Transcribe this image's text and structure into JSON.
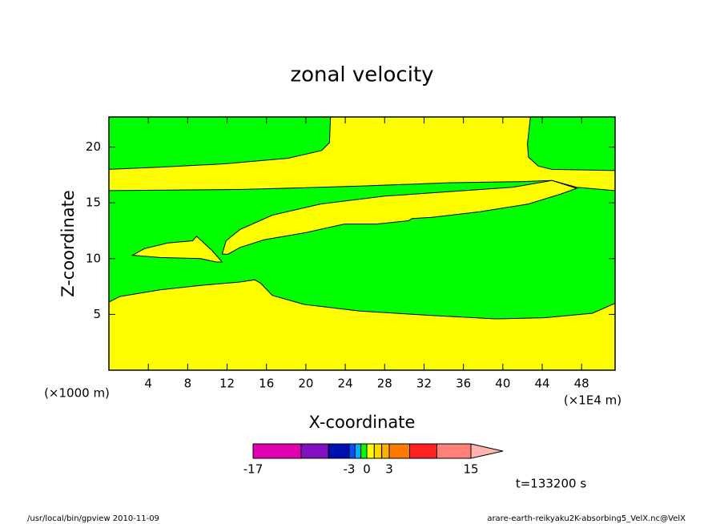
{
  "chart_data": {
    "type": "contour",
    "title": "zonal velocity",
    "x_label": "X-coordinate",
    "y_label": "Z-coordinate",
    "x_unit_left": "(×1000 m)",
    "x_unit_right": "(×1E4 m)",
    "time_label": "t=133200 s",
    "footer_left": "/usr/local/bin/gpview   2010-11-09",
    "footer_right": "arare-earth-reikyaku2K-absorbing5_VelX.nc@VelX",
    "xlim": [
      0,
      51.4
    ],
    "ylim": [
      0,
      22.7
    ],
    "xticks": [
      4,
      8,
      12,
      16,
      20,
      24,
      28,
      32,
      36,
      40,
      44,
      48
    ],
    "yticks": [
      5,
      10,
      15,
      20
    ],
    "background_color": "#ffff00",
    "regions": [
      {
        "color": "#00ff00",
        "x": [
          0,
          22.5,
          22.4,
          21.6,
          18.2,
          11.7,
          5.2,
          0
        ],
        "z": [
          22.7,
          22.7,
          20.4,
          19.7,
          19.0,
          18.5,
          18.2,
          18.0
        ]
      },
      {
        "color": "#00ff00",
        "x": [
          42.8,
          51.4,
          51.4,
          45.0,
          43.6,
          42.6,
          42.5
        ],
        "z": [
          22.7,
          22.7,
          17.9,
          18.0,
          18.3,
          19.1,
          20.3
        ]
      },
      {
        "color": "#00ff00",
        "x": [
          0,
          13.3,
          25.5,
          34.5,
          41.8,
          45.0,
          47.5,
          51.4,
          51.4,
          49.1,
          44.2,
          39.3,
          32.8,
          25.5,
          19.8,
          16.6,
          15.4,
          14.8,
          13.3,
          9.3,
          5.2,
          1.1,
          0
        ],
        "z": [
          16.1,
          16.2,
          16.5,
          16.8,
          16.9,
          17.0,
          16.4,
          16.1,
          6.0,
          5.1,
          4.7,
          4.6,
          4.9,
          5.3,
          5.9,
          6.7,
          7.8,
          8.1,
          7.9,
          7.6,
          7.2,
          6.6,
          6.1
        ]
      },
      {
        "color": "#ffff00",
        "x": [
          11.5,
          11.9,
          13.3,
          16.6,
          21.5,
          28.0,
          34.5,
          41.0,
          45.0,
          47.5,
          45.9,
          42.6,
          37.7,
          32.8,
          30.8,
          30.4,
          27.2,
          23.9,
          19.8,
          15.8,
          13.3,
          12.1
        ],
        "z": [
          10.4,
          11.6,
          12.6,
          13.9,
          14.9,
          15.6,
          16.0,
          16.4,
          17.0,
          16.3,
          15.8,
          14.9,
          14.2,
          13.7,
          13.6,
          13.4,
          13.1,
          13.1,
          12.3,
          11.7,
          11.0,
          10.4
        ]
      },
      {
        "color": "#ffff00",
        "x": [
          2.4,
          3.6,
          6.0,
          8.5,
          8.9,
          9.4,
          10.5,
          11.5,
          10.9,
          9.3,
          5.2
        ],
        "z": [
          10.3,
          10.9,
          11.4,
          11.6,
          12.0,
          11.6,
          10.7,
          9.7,
          9.7,
          10.0,
          10.1
        ]
      }
    ],
    "colorbar": {
      "levels": [
        -17,
        -10,
        -6,
        -3,
        -2,
        -1,
        0,
        1,
        2,
        3,
        6,
        10,
        15
      ],
      "colors": [
        "#e000b0",
        "#8010c0",
        "#0010b0",
        "#0050ff",
        "#00b0ff",
        "#00ff00",
        "#ffff00",
        "#ffd800",
        "#ffb000",
        "#ff7a00",
        "#ff2020",
        "#ff8078",
        "#ffb4b0"
      ],
      "ticks": [
        -17,
        -3,
        0,
        3,
        15
      ]
    }
  }
}
